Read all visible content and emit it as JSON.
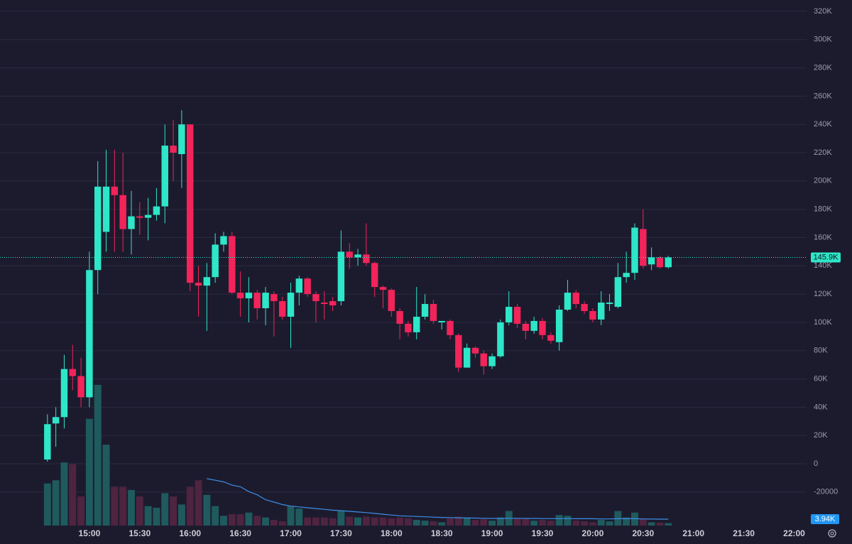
{
  "chart_data": {
    "type": "candlestick",
    "x": [
      "14:35",
      "14:40",
      "14:45",
      "14:50",
      "14:55",
      "15:00",
      "15:05",
      "15:10",
      "15:15",
      "15:20",
      "15:25",
      "15:30",
      "15:35",
      "15:40",
      "15:45",
      "15:50",
      "15:55",
      "16:00",
      "16:05",
      "16:10",
      "16:15",
      "16:20",
      "16:25",
      "16:30",
      "16:35",
      "16:40",
      "16:45",
      "16:50",
      "16:55",
      "17:00",
      "17:05",
      "17:10",
      "17:15",
      "17:20",
      "17:25",
      "17:30",
      "17:35",
      "17:40",
      "17:45",
      "17:50",
      "17:55",
      "18:00",
      "18:05",
      "18:10",
      "18:15",
      "18:20",
      "18:25",
      "18:30",
      "18:35",
      "18:40",
      "18:45",
      "18:50",
      "18:55",
      "19:00",
      "19:05",
      "19:10",
      "19:15",
      "19:20",
      "19:25",
      "19:30",
      "19:35",
      "19:40",
      "19:45",
      "19:50",
      "19:55",
      "20:00",
      "20:05",
      "20:10",
      "20:15",
      "20:20",
      "20:25",
      "20:30",
      "20:35",
      "20:40",
      "20:45"
    ],
    "open": [
      3000,
      28500,
      33000,
      67000,
      62000,
      47000,
      137000,
      164000,
      196000,
      190000,
      166000,
      175000,
      174000,
      176000,
      182000,
      225000,
      219000,
      240000,
      128000,
      126000,
      132000,
      155000,
      161000,
      121000,
      117000,
      121000,
      110000,
      120000,
      115000,
      104000,
      121000,
      131000,
      120000,
      114000,
      115000,
      115000,
      150000,
      146000,
      148000,
      142000,
      125000,
      123000,
      108000,
      99000,
      93000,
      104000,
      113000,
      100000,
      101000,
      91000,
      68000,
      82000,
      78000,
      69000,
      76000,
      100000,
      111000,
      99000,
      94000,
      101000,
      91000,
      86000,
      109000,
      121000,
      113000,
      108000,
      102000,
      113000,
      111000,
      132000,
      135000,
      166000,
      141000,
      146000,
      139000
    ],
    "high": [
      35000,
      40000,
      77000,
      84000,
      75000,
      150000,
      214000,
      222000,
      222000,
      220000,
      193000,
      185000,
      188000,
      195000,
      240000,
      243000,
      250000,
      240000,
      140000,
      142000,
      163000,
      164000,
      164000,
      136000,
      132000,
      123000,
      125000,
      122000,
      118000,
      128000,
      133000,
      132000,
      122000,
      122000,
      118000,
      165000,
      156000,
      152000,
      170000,
      143000,
      126000,
      124000,
      110000,
      101000,
      125000,
      120000,
      116000,
      101000,
      102000,
      92000,
      85000,
      83000,
      80000,
      78000,
      102000,
      122000,
      113000,
      101000,
      104000,
      103000,
      93000,
      112000,
      130000,
      123000,
      115000,
      110000,
      122000,
      120000,
      142000,
      150000,
      170000,
      180000,
      153000,
      147000,
      147000
    ],
    "low": [
      1500,
      12000,
      25000,
      52000,
      40000,
      40000,
      120000,
      150000,
      150000,
      150000,
      148000,
      162000,
      158000,
      172000,
      170000,
      200000,
      195000,
      122000,
      104000,
      94000,
      128000,
      150000,
      120000,
      104000,
      100000,
      102000,
      98000,
      90000,
      102000,
      82000,
      112000,
      118000,
      100000,
      102000,
      108000,
      112000,
      138000,
      140000,
      140000,
      118000,
      110000,
      104000,
      88000,
      90000,
      88000,
      102000,
      99000,
      95000,
      88000,
      65000,
      68000,
      75000,
      63000,
      67000,
      75000,
      98000,
      96000,
      88000,
      92000,
      88000,
      85000,
      80000,
      108000,
      110000,
      106000,
      100000,
      98000,
      108000,
      110000,
      128000,
      130000,
      138000,
      137000,
      138000,
      138000
    ],
    "close": [
      28000,
      33000,
      67000,
      62000,
      47000,
      137000,
      196000,
      196000,
      190000,
      166000,
      175000,
      174000,
      176000,
      182000,
      225000,
      220000,
      240000,
      128000,
      126000,
      132000,
      155000,
      161000,
      121000,
      117000,
      121000,
      110000,
      121000,
      115000,
      104000,
      121000,
      131000,
      120000,
      115000,
      113000,
      112000,
      150000,
      146000,
      148000,
      142000,
      125000,
      123000,
      108000,
      99000,
      93000,
      104000,
      113000,
      101000,
      101000,
      91000,
      68000,
      82000,
      78000,
      69000,
      76000,
      100000,
      111000,
      99000,
      94000,
      101000,
      91000,
      87000,
      109000,
      121000,
      113000,
      108000,
      102000,
      114000,
      114000,
      132000,
      135000,
      167000,
      140000,
      146000,
      139000,
      145900
    ],
    "volume": [
      26000,
      28000,
      39000,
      38000,
      18000,
      66000,
      87000,
      50000,
      24000,
      24000,
      22000,
      18000,
      12000,
      11000,
      20000,
      18000,
      13000,
      24000,
      28000,
      19000,
      12000,
      6000,
      7000,
      7000,
      8000,
      6000,
      5000,
      3500,
      2600,
      12000,
      10500,
      5000,
      5000,
      5000,
      4500,
      9000,
      5500,
      5000,
      5500,
      5000,
      5000,
      4500,
      5000,
      4500,
      3500,
      3000,
      2600,
      2000,
      4500,
      5500,
      5000,
      3500,
      4000,
      3000,
      5000,
      9000,
      4500,
      4000,
      3000,
      3500,
      3000,
      6500,
      6000,
      3000,
      2600,
      2000,
      3500,
      2600,
      9000,
      5000,
      8000,
      4000,
      2000,
      1800,
      1500
    ],
    "volume_ma": [
      null,
      null,
      null,
      null,
      null,
      null,
      null,
      null,
      null,
      null,
      null,
      null,
      null,
      null,
      null,
      null,
      null,
      null,
      null,
      29000,
      28000,
      27000,
      25000,
      24000,
      21000,
      19000,
      16000,
      14500,
      13000,
      12000,
      11500,
      11000,
      10500,
      10000,
      9500,
      9200,
      8800,
      8400,
      8000,
      7500,
      7000,
      6500,
      6000,
      5800,
      5600,
      5400,
      5200,
      5000,
      4900,
      4800,
      4700,
      4600,
      4500,
      4400,
      4400,
      4500,
      4500,
      4400,
      4400,
      4300,
      4300,
      4300,
      4300,
      4200,
      4200,
      4200,
      4100,
      4100,
      4200,
      4200,
      4200,
      4100,
      4000,
      3970,
      3940
    ],
    "up_color": "#2ee6c8",
    "down_color": "#f2245a",
    "volume_up_color": "#1f5a5e",
    "volume_down_color": "#4e2440",
    "ma_color": "#3d8ee8",
    "price_marker_color": "#2ee6c8",
    "volume_marker_color": "#2196f3",
    "price_marker": {
      "value": 145900,
      "label": "145.9K"
    },
    "volume_marker": {
      "value": 3940,
      "label": "3.94K"
    },
    "xlim": [
      "14:30",
      "22:00"
    ],
    "xticks": [
      "15:00",
      "15:30",
      "16:00",
      "16:30",
      "17:00",
      "17:30",
      "18:00",
      "18:30",
      "19:00",
      "19:30",
      "20:00",
      "20:30",
      "21:00",
      "21:30",
      "22:00"
    ],
    "ylim": [
      -43700,
      328000
    ],
    "vlim": [
      0,
      325000
    ],
    "yticks": [
      {
        "value": 320000,
        "label": "320K"
      },
      {
        "value": 300000,
        "label": "300K"
      },
      {
        "value": 280000,
        "label": "280K"
      },
      {
        "value": 260000,
        "label": "260K"
      },
      {
        "value": 240000,
        "label": "240K"
      },
      {
        "value": 220000,
        "label": "220K"
      },
      {
        "value": 200000,
        "label": "200K"
      },
      {
        "value": 180000,
        "label": "180K"
      },
      {
        "value": 160000,
        "label": "160K"
      },
      {
        "value": 140000,
        "label": "140K"
      },
      {
        "value": 120000,
        "label": "120K"
      },
      {
        "value": 100000,
        "label": "100K"
      },
      {
        "value": 80000,
        "label": "80K"
      },
      {
        "value": 60000,
        "label": "60K"
      },
      {
        "value": 40000,
        "label": "40K"
      },
      {
        "value": 20000,
        "label": "20K"
      },
      0,
      -20000
    ],
    "grid": true
  }
}
